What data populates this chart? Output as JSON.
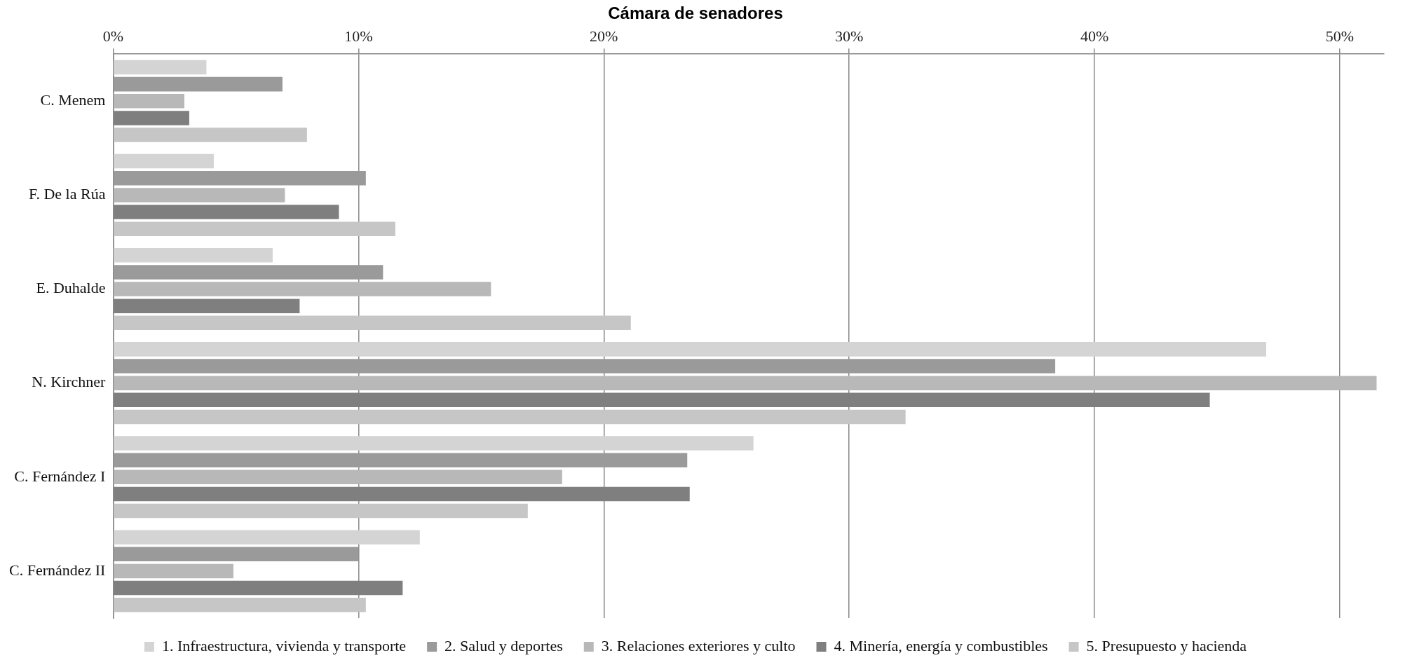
{
  "chart_data": {
    "type": "bar",
    "orientation": "horizontal",
    "title": "Cámara de senadores",
    "categories": [
      "C. Menem",
      "F. De la Rúa",
      "E. Duhalde",
      "N. Kirchner",
      "C. Fernández I",
      "C. Fernández II"
    ],
    "series": [
      {
        "name": "1. Infraestructura, vivienda y transporte",
        "color": "#d4d4d4",
        "values": [
          3.8,
          4.1,
          6.5,
          47.0,
          26.1,
          12.5
        ]
      },
      {
        "name": "2. Salud y deportes",
        "color": "#9a9a9a",
        "values": [
          6.9,
          10.3,
          11.0,
          38.4,
          23.4,
          10.0
        ]
      },
      {
        "name": "3. Relaciones exteriores y culto",
        "color": "#b8b8b8",
        "values": [
          2.9,
          7.0,
          15.4,
          51.5,
          18.3,
          4.9
        ]
      },
      {
        "name": "4. Minería, energía y combustibles",
        "color": "#7f7f7f",
        "values": [
          3.1,
          9.2,
          7.6,
          44.7,
          23.5,
          11.8
        ]
      },
      {
        "name": "5. Presupuesto y hacienda",
        "color": "#c6c6c6",
        "values": [
          7.9,
          11.5,
          21.1,
          32.3,
          16.9,
          10.3
        ]
      }
    ],
    "xlim": [
      0,
      51.8
    ],
    "xticks": [
      {
        "value": 0,
        "label": "0%"
      },
      {
        "value": 10,
        "label": "10%"
      },
      {
        "value": 20,
        "label": "20%"
      },
      {
        "value": 30,
        "label": "30%"
      },
      {
        "value": 40,
        "label": "40%"
      },
      {
        "value": 50,
        "label": "50%"
      }
    ],
    "grid": "x",
    "legend": "bottom"
  }
}
